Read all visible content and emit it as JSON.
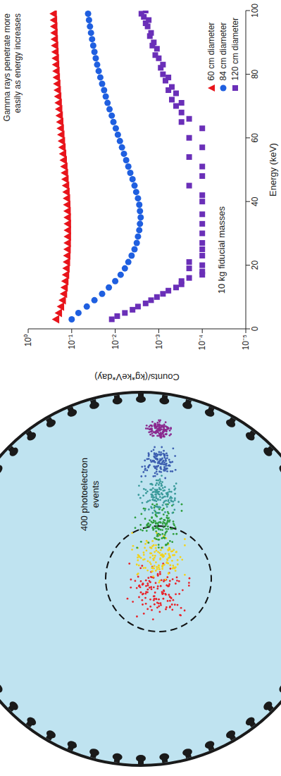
{
  "chart_data": {
    "type": "scatter",
    "x_label": "Energy (keV)",
    "y_label": "Counts/(kg*keV*day)",
    "annotations": [
      "Gamma rays penetrate more easily as energy increases",
      "10 kg fiducial masses"
    ],
    "log": "y",
    "legend": "lower right",
    "xlim": [
      0,
      100
    ],
    "xticks": [
      0,
      20,
      40,
      60,
      80,
      100
    ],
    "ylim": [
      1e-05,
      1
    ],
    "yticks": [
      {
        "value": 1,
        "label": "10⁰"
      },
      {
        "value": 0.1,
        "label": "10⁻¹"
      },
      {
        "value": 0.01,
        "label": "10⁻²"
      },
      {
        "value": 0.001,
        "label": "10⁻³"
      },
      {
        "value": 0.0001,
        "label": "10⁻⁴"
      },
      {
        "value": 1e-05,
        "label": "10⁻⁵"
      }
    ],
    "series": [
      {
        "name": "60 cm diameter",
        "color": "#e8141b",
        "marker": "triangle",
        "x": [
          3,
          5,
          7,
          9,
          11,
          13,
          15,
          17,
          19,
          21,
          23,
          25,
          27,
          29,
          31,
          33,
          35,
          37,
          39,
          41,
          43,
          45,
          47,
          49,
          51,
          53,
          55,
          57,
          59,
          61,
          63,
          65,
          67,
          69,
          71,
          73,
          75,
          77,
          79,
          81,
          83,
          85,
          87,
          89,
          91,
          93,
          95,
          97,
          99
        ],
        "values": [
          0.22,
          0.19,
          0.17,
          0.155,
          0.145,
          0.14,
          0.135,
          0.13,
          0.127,
          0.124,
          0.122,
          0.12,
          0.119,
          0.118,
          0.118,
          0.118,
          0.119,
          0.12,
          0.122,
          0.124,
          0.127,
          0.13,
          0.134,
          0.138,
          0.142,
          0.147,
          0.152,
          0.157,
          0.162,
          0.167,
          0.172,
          0.177,
          0.182,
          0.187,
          0.192,
          0.197,
          0.202,
          0.207,
          0.212,
          0.216,
          0.22,
          0.224,
          0.228,
          0.232,
          0.236,
          0.24,
          0.243,
          0.246,
          0.25
        ]
      },
      {
        "name": "84 cm diameter",
        "color": "#1f5fe0",
        "marker": "circle",
        "x": [
          3,
          5,
          7,
          9,
          11,
          13,
          15,
          17,
          19,
          21,
          23,
          25,
          27,
          29,
          31,
          33,
          35,
          37,
          39,
          41,
          43,
          45,
          47,
          49,
          51,
          53,
          55,
          57,
          59,
          61,
          63,
          65,
          67,
          69,
          71,
          73,
          75,
          77,
          79,
          81,
          83,
          85,
          87,
          89,
          91,
          93,
          95,
          97,
          99
        ],
        "values": [
          0.1,
          0.07,
          0.045,
          0.03,
          0.02,
          0.014,
          0.01,
          0.0075,
          0.006,
          0.005,
          0.0042,
          0.0036,
          0.0032,
          0.003,
          0.0028,
          0.0027,
          0.0026,
          0.0027,
          0.0028,
          0.003,
          0.0033,
          0.0036,
          0.004,
          0.0045,
          0.005,
          0.0056,
          0.0063,
          0.007,
          0.0078,
          0.0087,
          0.0097,
          0.011,
          0.012,
          0.0135,
          0.015,
          0.0165,
          0.018,
          0.02,
          0.022,
          0.024,
          0.026,
          0.028,
          0.03,
          0.032,
          0.034,
          0.036,
          0.038,
          0.04,
          0.042
        ]
      },
      {
        "name": "120 cm diameter",
        "color": "#6a2fb8",
        "marker": "square",
        "x": [
          3,
          4,
          5,
          6,
          7,
          8,
          9,
          10,
          11,
          12,
          13,
          14,
          15,
          16,
          17,
          18,
          19,
          20,
          21,
          23,
          25,
          27,
          30,
          33,
          36,
          40,
          42,
          45,
          48,
          51,
          54,
          57,
          60,
          63,
          65,
          66,
          68,
          70,
          71,
          72,
          74,
          75,
          76,
          78,
          79,
          80,
          82,
          83,
          85,
          86,
          88,
          89,
          90,
          92,
          93,
          95,
          96,
          97,
          98,
          99,
          100
        ],
        "values": [
          0.012,
          0.009,
          0.006,
          0.004,
          0.003,
          0.002,
          0.0015,
          0.0011,
          0.0008,
          0.0006,
          0.0004,
          0.0003,
          0.0003,
          0.0002,
          0.0001,
          0.0001,
          0.0002,
          0.0001,
          0.0002,
          0.0001,
          0.0001,
          0.0001,
          0.0001,
          0.0001,
          0.0001,
          0.0001,
          0.0001,
          0.0002,
          0.0001,
          0.0001,
          0.0002,
          0.0001,
          0.0002,
          0.0001,
          0.0003,
          0.0002,
          0.0003,
          0.0004,
          0.0003,
          0.0005,
          0.0004,
          0.0006,
          0.0005,
          0.0007,
          0.0006,
          0.0008,
          0.0009,
          0.0008,
          0.001,
          0.0012,
          0.0011,
          0.0014,
          0.0013,
          0.0016,
          0.0015,
          0.0018,
          0.002,
          0.0017,
          0.0022,
          0.0025,
          0.002
        ]
      }
    ]
  },
  "diagram": {
    "label": "400 photoelectron events"
  }
}
